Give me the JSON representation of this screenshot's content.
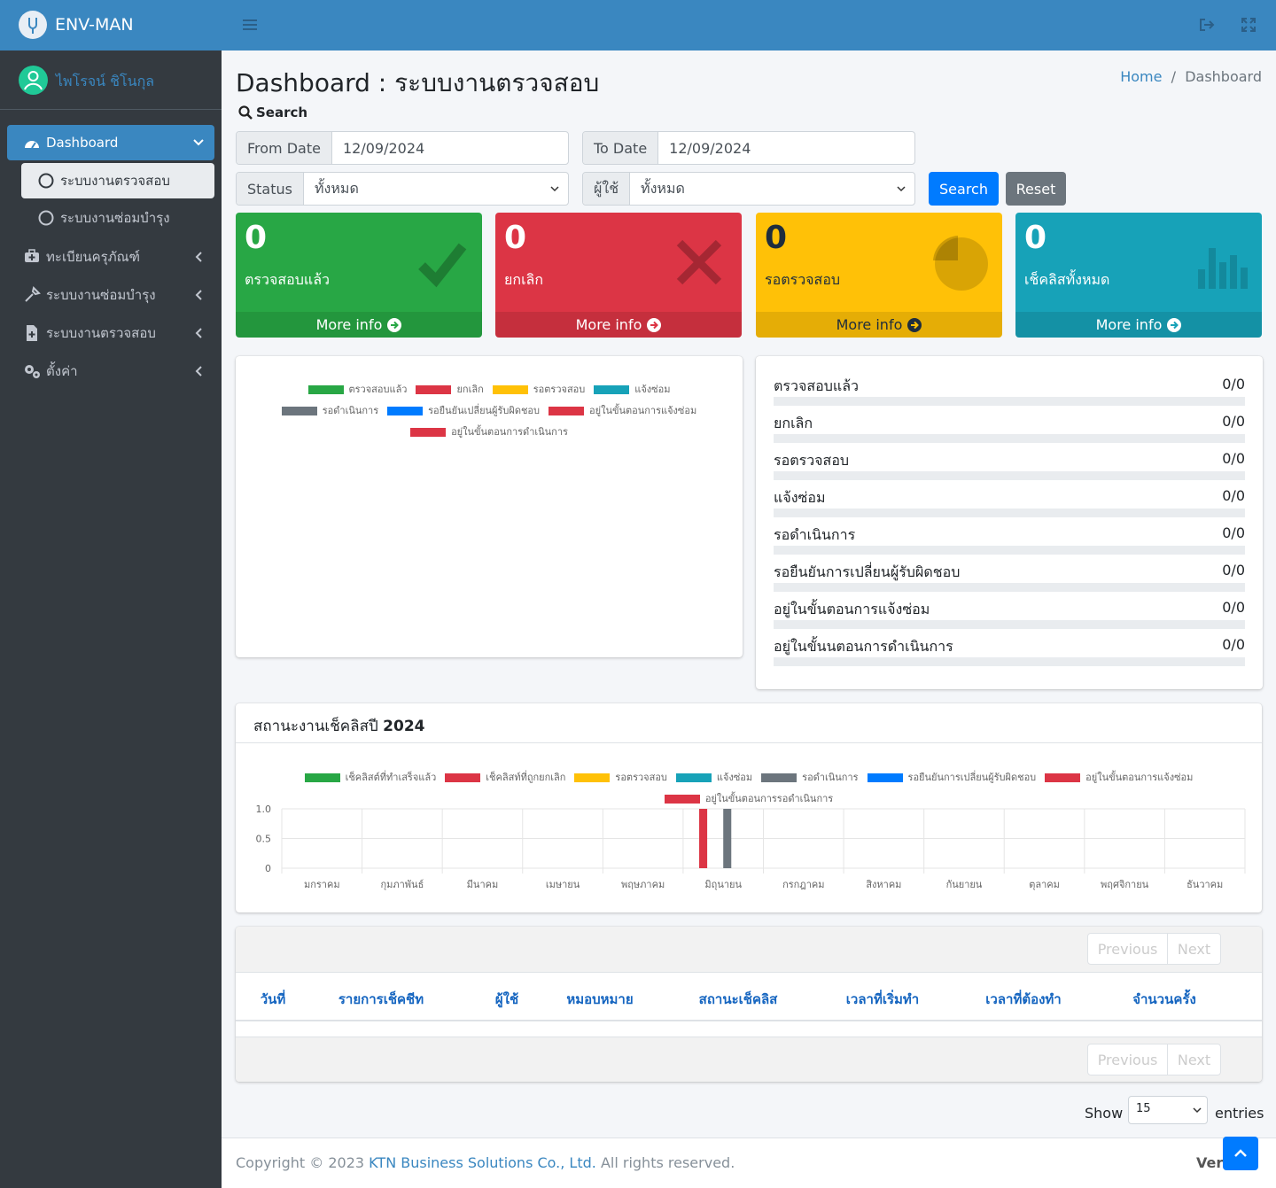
{
  "brand": "ENV-MAN",
  "user": "ไพโรจน์ ชิโนกุล",
  "sidebar": {
    "dashboard": "Dashboard",
    "sub": [
      "ระบบงานตรวจสอบ",
      "ระบบงานซ่อมบำรุง"
    ],
    "items": [
      "ทะเบียนครุภัณฑ์",
      "ระบบงานซ่อมบำรุง",
      "ระบบงานตรวจสอบ",
      "ตั้งค่า"
    ]
  },
  "header": {
    "title": "Dashboard : ระบบงานตรวจสอบ",
    "breadcrumb": [
      "Home",
      "Dashboard"
    ]
  },
  "search": {
    "label": "Search",
    "from_label": "From Date",
    "from_value": "12/09/2024",
    "to_label": "To Date",
    "to_value": "12/09/2024",
    "status_label": "Status",
    "status_value": "ทั้งหมด",
    "user_label": "ผู้ใช้",
    "user_value": "ทั้งหมด",
    "search_button": "Search",
    "reset_button": "Reset"
  },
  "boxes": [
    {
      "value": 0,
      "label": "ตรวจสอบแล้ว",
      "more": "More info",
      "color": "#28a745"
    },
    {
      "value": 0,
      "label": "ยกเลิก",
      "more": "More info",
      "color": "#dc3545"
    },
    {
      "value": 0,
      "label": "รอตรวจสอบ",
      "more": "More info",
      "color": "#ffc107"
    },
    {
      "value": 0,
      "label": "เช็คลิสทั้งหมด",
      "more": "More info",
      "color": "#17a2b8"
    }
  ],
  "progress": [
    {
      "label": "ตรวจสอบแล้ว",
      "value": "0/0"
    },
    {
      "label": "ยกเลิก",
      "value": "0/0"
    },
    {
      "label": "รอตรวจสอบ",
      "value": "0/0"
    },
    {
      "label": "แจ้งซ่อม",
      "value": "0/0"
    },
    {
      "label": "รอดำเนินการ",
      "value": "0/0"
    },
    {
      "label": "รอยืนยันการเปลี่ยนผู้รับผิดชอบ",
      "value": "0/0"
    },
    {
      "label": "อยู่ในขั้นตอนการแจ้งซ่อม",
      "value": "0/0"
    },
    {
      "label": "อยู่ในขั้นนตอนการดำเนินการ",
      "value": "0/0"
    }
  ],
  "chart_data": [
    {
      "type": "pie",
      "categories": [
        "ตรวจสอบแล้ว",
        "ยกเลิก",
        "รอตรวจสอบ",
        "แจ้งซ่อม",
        "รอดำเนินการ",
        "รอยืนยันเปลี่ยนผู้รับผิดชอบ",
        "อยู่ในขั้นตอนการแจ้งซ่อม",
        "อยู่ในขั้นตอนการดำเนินการ"
      ],
      "values": [
        0,
        0,
        0,
        0,
        0,
        0,
        0,
        0
      ],
      "colors": [
        "#28a745",
        "#dc3545",
        "#ffc107",
        "#17a2b8",
        "#6c757d",
        "#007bff",
        "#dc3545",
        "#dc3545"
      ]
    },
    {
      "type": "bar",
      "title": "สถานะงานเช็คลิสปี",
      "title_year": "2024",
      "categories": [
        "มกราคม",
        "กุมภาพันธ์",
        "มีนาคม",
        "เมษายน",
        "พฤษภาคม",
        "มิถุนายน",
        "กรกฎาคม",
        "สิงหาคม",
        "กันยายน",
        "ตุลาคม",
        "พฤศจิกายน",
        "ธันวาคม"
      ],
      "series": [
        {
          "name": "เช็คลิสต์ที่ทำเสร็จแล้ว",
          "color": "#28a745",
          "values": [
            0,
            0,
            0,
            0,
            0,
            0,
            0,
            0,
            0,
            0,
            0,
            0
          ]
        },
        {
          "name": "เช็คลิสท์ที่ถูกยกเลิก",
          "color": "#dc3545",
          "values": [
            0,
            0,
            0,
            0,
            0,
            1,
            0,
            0,
            0,
            0,
            0,
            0
          ]
        },
        {
          "name": "รอตรวจสอบ",
          "color": "#ffc107",
          "values": [
            0,
            0,
            0,
            0,
            0,
            0,
            0,
            0,
            0,
            0,
            0,
            0
          ]
        },
        {
          "name": "แจ้งซ่อม",
          "color": "#17a2b8",
          "values": [
            0,
            0,
            0,
            0,
            0,
            0,
            0,
            0,
            0,
            0,
            0,
            0
          ]
        },
        {
          "name": "รอดำเนินการ",
          "color": "#6c757d",
          "values": [
            0,
            0,
            0,
            0,
            0,
            1,
            0,
            0,
            0,
            0,
            0,
            0
          ]
        },
        {
          "name": "รอยืนยันการเปลี่ยนผู้รับผิดชอบ",
          "color": "#007bff",
          "values": [
            0,
            0,
            0,
            0,
            0,
            0,
            0,
            0,
            0,
            0,
            0,
            0
          ]
        },
        {
          "name": "อยู่ในขั้นตอนการแจ้งซ่อม",
          "color": "#dc3545",
          "values": [
            0,
            0,
            0,
            0,
            0,
            0,
            0,
            0,
            0,
            0,
            0,
            0
          ]
        },
        {
          "name": "อยู่ในขั้นตอนการรอดำเนินการ",
          "color": "#dc3545",
          "values": [
            0,
            0,
            0,
            0,
            0,
            0,
            0,
            0,
            0,
            0,
            0,
            0
          ]
        }
      ],
      "ylim": [
        0,
        1
      ],
      "yticks": [
        0,
        0.5,
        {
          "value": 1,
          "label": "1.0"
        }
      ],
      "grid": true
    }
  ],
  "table": {
    "headers": [
      "วันที่",
      "รายการเช็คชีท",
      "ผู้ใช้",
      "หมอบหมาย",
      "สถานะเช็คลิส",
      "เวลาที่เริ่มทำ",
      "เวลาที่ต้องทำ",
      "จำนวนครั้ง"
    ],
    "previous": "Previous",
    "next": "Next",
    "show": "Show",
    "page_size": "15",
    "entries": "entries"
  },
  "footer": {
    "copyright": "Copyright © 2023",
    "company": "KTN Business Solutions Co., Ltd.",
    "rights": "All rights reserved.",
    "version": "Version"
  }
}
